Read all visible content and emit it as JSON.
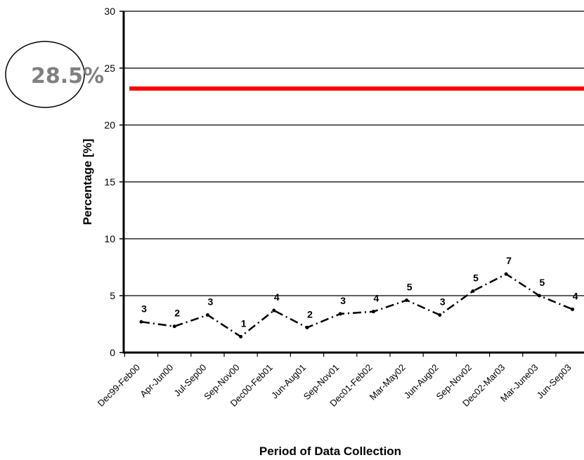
{
  "chart_data": {
    "type": "line",
    "xlabel": "Period of Data Collection",
    "ylabel": "Percentage [%]",
    "ylim": [
      0,
      30
    ],
    "yticks": [
      "0",
      "5",
      "10",
      "15",
      "20",
      "25",
      "30"
    ],
    "grid": true,
    "categories": [
      "Dec99-Feb00",
      "Apr-Jun00",
      "Jul-Sep00",
      "Sep-Nov00",
      "Dec00-Feb01",
      "Jun-Aug01",
      "Sep-Nov01",
      "Dec01-Feb02",
      "Mar-May02",
      "Jun-Aug02",
      "Sep-Nov02",
      "Dec02-Mar03",
      "Mar-June03",
      "Jun-Sep03"
    ],
    "series": [
      {
        "values": [
          2.7,
          2.3,
          3.3,
          1.4,
          3.7,
          2.2,
          3.4,
          3.6,
          4.6,
          3.3,
          5.4,
          6.9,
          5.0,
          3.8
        ],
        "labels": [
          "3",
          "2",
          "3",
          "1",
          "4",
          "2",
          "3",
          "4",
          "5",
          "3",
          "5",
          "7",
          "5",
          "4"
        ],
        "color": "#000000"
      }
    ],
    "reference_line": {
      "value": 23.2,
      "color": "#ff0000"
    },
    "callout": {
      "text": "28.5%"
    }
  }
}
